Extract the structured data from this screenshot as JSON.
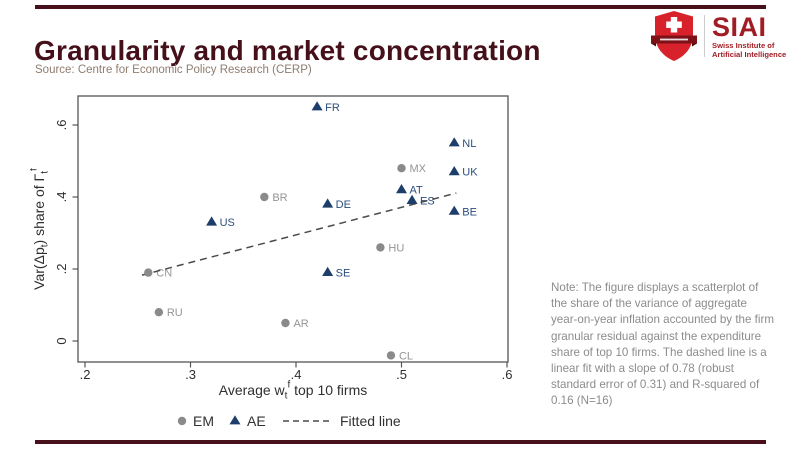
{
  "header": {
    "title": "Granularity and market concentration",
    "source": "Source: Centre for Economic Policy Research (CERP)"
  },
  "logo": {
    "name": "SIAI",
    "tagline1": "Swiss Institute of",
    "tagline2": "Artificial Intelligence",
    "brand_red": "#d7222c",
    "brand_dark_red": "#a11d24"
  },
  "note": {
    "text": "Note: The figure displays a scatterplot of the share of the variance of aggregate year-on-year inflation accounted by the firm granular residual against the expenditure share of top 10 firms. The dashed line is a linear fit with a slope of 0.78 (robust standard error of 0.31) and R-squared of 0.16 (N=16)"
  },
  "chart_data": {
    "type": "scatter",
    "title": "Granularity and market concentration",
    "xlabel": "Average wtf top 10 firms",
    "ylabel": "Var(Δpt) share of Γtf",
    "xlabel_parts": [
      {
        "t": "Average w"
      },
      {
        "t": "t",
        "style": "sub"
      },
      {
        "t": "f",
        "style": "sup"
      },
      {
        "t": " top 10 firms"
      }
    ],
    "ylabel_parts": [
      {
        "t": "Var(Δp"
      },
      {
        "t": "t",
        "style": "sub"
      },
      {
        "t": ") share of Γ"
      },
      {
        "t": "t",
        "style": "sub"
      },
      {
        "t": "f",
        "style": "sup"
      }
    ],
    "xlim": [
      0.2,
      0.6
    ],
    "ylim": [
      -0.06,
      0.68
    ],
    "x_ticks": [
      ".2",
      ".3",
      ".4",
      ".5",
      ".6"
    ],
    "y_ticks": [
      "0",
      ".2",
      ".4",
      ".6"
    ],
    "grid": false,
    "legend_position": "bottom",
    "series": [
      {
        "name": "EM",
        "marker": "circle",
        "marker_color": "#8a8a8a",
        "label_color": "#949494",
        "points": [
          {
            "label": "MX",
            "x": 0.5,
            "y": 0.48
          },
          {
            "label": "BR",
            "x": 0.37,
            "y": 0.4
          },
          {
            "label": "HU",
            "x": 0.48,
            "y": 0.26
          },
          {
            "label": "CN",
            "x": 0.26,
            "y": 0.19
          },
          {
            "label": "RU",
            "x": 0.27,
            "y": 0.08
          },
          {
            "label": "AR",
            "x": 0.39,
            "y": 0.05
          },
          {
            "label": "CL",
            "x": 0.49,
            "y": -0.04
          }
        ]
      },
      {
        "name": "AE",
        "marker": "triangle",
        "marker_color": "#1d3e6b",
        "label_color": "#2b4e7d",
        "points": [
          {
            "label": "FR",
            "x": 0.42,
            "y": 0.65
          },
          {
            "label": "NL",
            "x": 0.55,
            "y": 0.55
          },
          {
            "label": "UK",
            "x": 0.55,
            "y": 0.47
          },
          {
            "label": "AT",
            "x": 0.5,
            "y": 0.42
          },
          {
            "label": "ES",
            "x": 0.51,
            "y": 0.39
          },
          {
            "label": "DE",
            "x": 0.43,
            "y": 0.38
          },
          {
            "label": "BE",
            "x": 0.55,
            "y": 0.36
          },
          {
            "label": "US",
            "x": 0.32,
            "y": 0.33
          },
          {
            "label": "SE",
            "x": 0.43,
            "y": 0.19
          }
        ]
      }
    ],
    "fitted_line": {
      "label": "Fitted line",
      "slope": 0.78,
      "x_start": 0.254,
      "y_start": 0.183,
      "x_end": 0.552,
      "y_end": 0.411
    },
    "legend": [
      "EM",
      "AE",
      "Fitted line"
    ],
    "colors": {
      "axis": "#545454",
      "tick_text": "#2f2f2f",
      "fitted_line": "#4a4a4a",
      "legend_text": "#303030"
    }
  }
}
